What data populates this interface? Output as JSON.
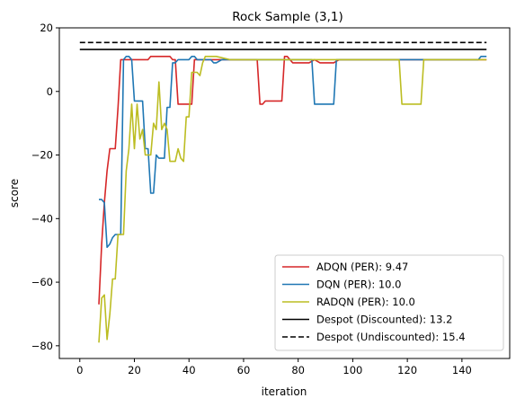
{
  "chart_data": {
    "type": "line",
    "title": "Rock Sample (3,1)",
    "xlabel": "iteration",
    "ylabel": "score",
    "xlim": [
      -7.5,
      157.5
    ],
    "ylim": [
      -84,
      20
    ],
    "xticks": [
      0,
      20,
      40,
      60,
      80,
      100,
      120,
      140
    ],
    "yticks": [
      -80,
      -60,
      -40,
      -20,
      0,
      20
    ],
    "grid": false,
    "legend_position": "lower-right",
    "series": [
      {
        "name": "ADQN (PER): 9.47",
        "color": "#d62728",
        "style": "solid",
        "x": [
          7,
          8,
          9,
          10,
          11,
          12,
          13,
          14,
          15,
          16,
          17,
          18,
          19,
          20,
          21,
          22,
          23,
          24,
          25,
          26,
          27,
          28,
          29,
          30,
          31,
          32,
          33,
          34,
          35,
          36,
          37,
          38,
          39,
          40,
          41,
          42,
          43,
          44,
          45,
          46,
          47,
          48,
          50,
          55,
          60,
          65,
          66,
          67,
          68,
          70,
          72,
          73,
          74,
          75,
          76,
          78,
          80,
          82,
          83,
          84,
          86,
          88,
          90,
          92,
          93,
          95,
          100,
          110,
          120,
          130,
          140,
          149
        ],
        "y": [
          -67,
          -48,
          -35,
          -25,
          -18,
          -18,
          -18,
          -5,
          10,
          10,
          10,
          10,
          10,
          10,
          10,
          10,
          10,
          10,
          10,
          11,
          11,
          11,
          11,
          11,
          11,
          11,
          11,
          10,
          10,
          -4,
          -4,
          -4,
          -4,
          -4,
          -4,
          10,
          10,
          10,
          10,
          10,
          10,
          10,
          10,
          10,
          10,
          10,
          -4,
          -4,
          -3,
          -3,
          -3,
          -3,
          -3,
          11,
          11,
          9,
          9,
          9,
          9,
          9,
          10,
          9,
          9,
          9,
          9,
          10,
          10,
          10,
          10,
          10,
          10,
          10
        ]
      },
      {
        "name": "DQN (PER): 10.0",
        "color": "#1f77b4",
        "style": "solid",
        "x": [
          7,
          8,
          9,
          10,
          11,
          12,
          13,
          14,
          15,
          16,
          17,
          18,
          19,
          20,
          21,
          22,
          23,
          24,
          25,
          26,
          27,
          28,
          29,
          30,
          31,
          32,
          33,
          34,
          35,
          36,
          38,
          40,
          41,
          42,
          43,
          44,
          45,
          46,
          47,
          48,
          49,
          50,
          52,
          55,
          60,
          65,
          70,
          75,
          80,
          85,
          86,
          88,
          90,
          92,
          93,
          94,
          100,
          110,
          120,
          130,
          140,
          146,
          147,
          149
        ],
        "y": [
          -34,
          -34,
          -35,
          -49,
          -48,
          -46,
          -45,
          -45,
          -45,
          10,
          11,
          11,
          10,
          -3,
          -3,
          -3,
          -3,
          -18,
          -18,
          -32,
          -32,
          -20,
          -21,
          -21,
          -21,
          -5,
          -5,
          9,
          9,
          10,
          10,
          10,
          11,
          11,
          10,
          10,
          10,
          10,
          10,
          10,
          9,
          9,
          10,
          10,
          10,
          10,
          10,
          10,
          10,
          10,
          -4,
          -4,
          -4,
          -4,
          -4,
          10,
          10,
          10,
          10,
          10,
          10,
          10,
          11,
          11
        ]
      },
      {
        "name": "RADQN (PER): 10.0",
        "color": "#bcbd22",
        "style": "solid",
        "x": [
          7,
          8,
          9,
          10,
          11,
          12,
          13,
          14,
          15,
          16,
          17,
          18,
          19,
          20,
          21,
          22,
          23,
          24,
          25,
          26,
          27,
          28,
          29,
          30,
          31,
          32,
          33,
          34,
          35,
          36,
          37,
          38,
          39,
          40,
          41,
          42,
          43,
          44,
          45,
          46,
          47,
          48,
          50,
          55,
          60,
          65,
          70,
          75,
          80,
          85,
          90,
          95,
          100,
          110,
          115,
          117,
          118,
          120,
          122,
          124,
          125,
          126,
          130,
          140,
          149
        ],
        "y": [
          -79,
          -65,
          -64,
          -78,
          -70,
          -59,
          -59,
          -45,
          -45,
          -45,
          -25,
          -18,
          -4,
          -18,
          -4,
          -15,
          -12,
          -20,
          -20,
          -20,
          -10,
          -12,
          3,
          -12,
          -10,
          -12,
          -22,
          -22,
          -22,
          -18,
          -21,
          -22,
          -8,
          -8,
          6,
          6,
          6,
          5,
          9,
          11,
          11,
          11,
          11,
          10,
          10,
          10,
          10,
          10,
          10,
          10,
          10,
          10,
          10,
          10,
          10,
          10,
          -4,
          -4,
          -4,
          -4,
          -4,
          10,
          10,
          10,
          10
        ]
      },
      {
        "name": "Despot (Discounted): 13.2",
        "color": "#000000",
        "style": "solid",
        "x": [
          0,
          149
        ],
        "y": [
          13.2,
          13.2
        ]
      },
      {
        "name": "Despot (Undiscounted): 15.4",
        "color": "#000000",
        "style": "dashed",
        "x": [
          0,
          149
        ],
        "y": [
          15.4,
          15.4
        ]
      }
    ]
  }
}
